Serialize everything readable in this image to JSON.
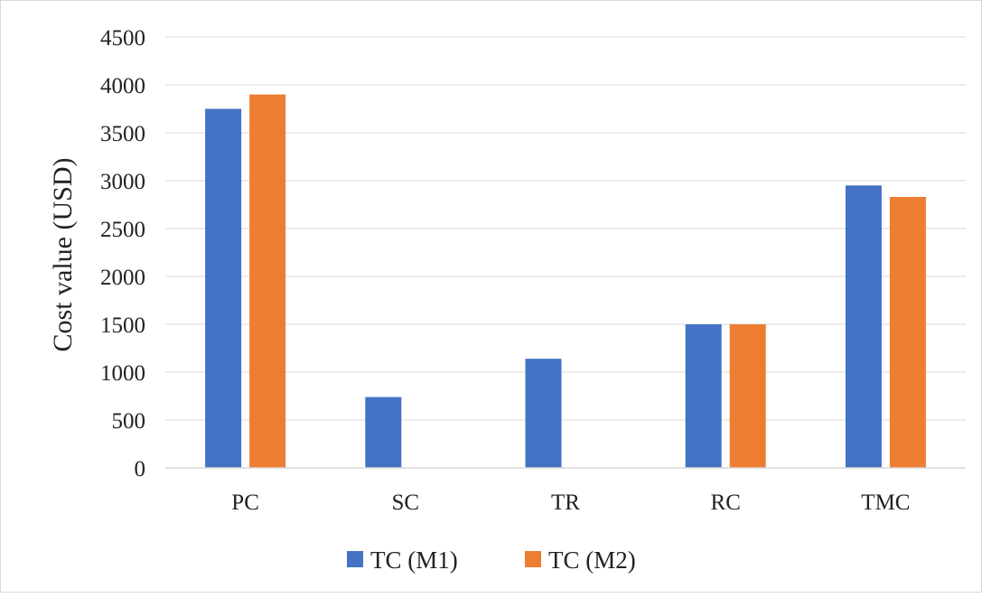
{
  "chart_data": {
    "type": "bar",
    "title": "",
    "xlabel": "",
    "ylabel": "Cost value (USD)",
    "categories": [
      "PC",
      "SC",
      "TR",
      "RC",
      "TMC"
    ],
    "series": [
      {
        "name": "TC (M1)",
        "values": [
          3750,
          740,
          1140,
          1500,
          2950
        ],
        "color": "#4472C4"
      },
      {
        "name": "TC (M2)",
        "values": [
          3900,
          0,
          0,
          1500,
          2830
        ],
        "color": "#ED7D31"
      }
    ],
    "ylim": [
      0,
      4500
    ],
    "yticks": [
      "0",
      "500",
      "1000",
      "1500",
      "2000",
      "2500",
      "3000",
      "3500",
      "4000",
      "4500"
    ],
    "grid": true,
    "legend_position": "bottom",
    "colors": {
      "gridline": "#d9d9d9",
      "axis": "#d9d9d9",
      "text": "#222222"
    }
  }
}
